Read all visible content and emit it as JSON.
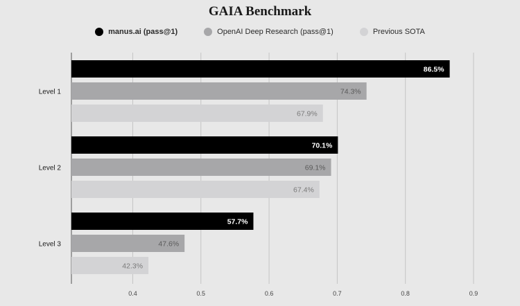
{
  "chart_data": {
    "type": "bar",
    "orientation": "horizontal",
    "title": "GAIA Benchmark",
    "categories": [
      "Level 1",
      "Level 2",
      "Level 3"
    ],
    "series": [
      {
        "name": "manus.ai (pass@1)",
        "values": [
          86.5,
          70.1,
          57.7
        ],
        "labels": [
          "86.5%",
          "70.1%",
          "57.7%"
        ],
        "color": "#000000",
        "label_color": "#ffffff"
      },
      {
        "name": "OpenAI Deep Research (pass@1)",
        "values": [
          74.3,
          69.1,
          47.6
        ],
        "labels": [
          "74.3%",
          "69.1%",
          "47.6%"
        ],
        "color": "#a7a7a9",
        "label_color": "#5a5a5a"
      },
      {
        "name": "Previous SOTA",
        "values": [
          67.9,
          67.4,
          42.3
        ],
        "labels": [
          "67.9%",
          "67.4%",
          "42.3%"
        ],
        "color": "#d3d3d5",
        "label_color": "#7a7a7a"
      }
    ],
    "xlim": [
      0.31,
      0.9
    ],
    "xticks": [
      0.4,
      0.5,
      0.6,
      0.7,
      0.8,
      0.9
    ],
    "xtick_labels": [
      "0.4",
      "0.5",
      "0.6",
      "0.7",
      "0.8",
      "0.9"
    ],
    "grid": true,
    "legend_position": "top-center"
  },
  "colors": {
    "background": "#e8e8e8",
    "grid": "#c4c4c4",
    "axis": "#555555"
  }
}
